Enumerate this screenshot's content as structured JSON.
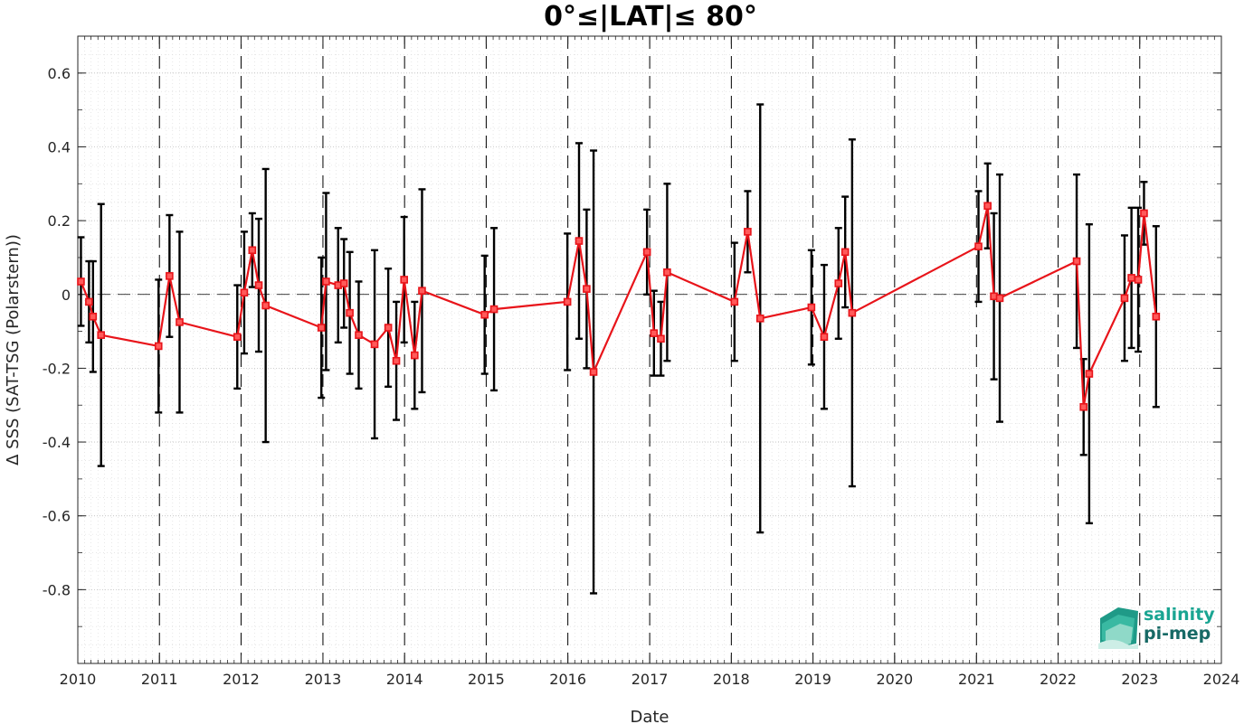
{
  "chart_data": {
    "type": "line",
    "title": "0°≤|LAT|≤ 80°",
    "xlabel": "Date",
    "ylabel": "Δ SSS (SAT-TSG (Polarstern))",
    "xlim": [
      "2010-01-01",
      "2024-01-01"
    ],
    "ylim": [
      -1.0,
      0.7
    ],
    "x_ticks": [
      "2010",
      "2011",
      "2012",
      "2013",
      "2014",
      "2015",
      "2016",
      "2017",
      "2018",
      "2019",
      "2020",
      "2021",
      "2022",
      "2023",
      "2024"
    ],
    "y_ticks": [
      -0.8,
      -0.6,
      -0.4,
      -0.2,
      0,
      0.2,
      0.4,
      0.6
    ],
    "y_tick_labels": [
      "-0.8",
      "-0.6",
      "-0.4",
      "-0.2",
      "0",
      "0.2",
      "0.4",
      "0.6"
    ],
    "grid": true,
    "year_lines": "dashed vertical lines at each year",
    "zero_line": "dashed horizontal line at 0",
    "series": [
      {
        "color": "#e8141a",
        "marker": "square",
        "error_bar_color": "#000000",
        "points": [
          {
            "date": "2010-01-15",
            "y": 0.035,
            "err": 0.12
          },
          {
            "date": "2010-02-20",
            "y": -0.02,
            "err": 0.11
          },
          {
            "date": "2010-03-10",
            "y": -0.06,
            "err": 0.15
          },
          {
            "date": "2010-04-15",
            "y": -0.11,
            "err": 0.355
          },
          {
            "date": "2010-12-28",
            "y": -0.14,
            "err": 0.18
          },
          {
            "date": "2011-02-15",
            "y": 0.05,
            "err": 0.165
          },
          {
            "date": "2011-04-01",
            "y": -0.075,
            "err": 0.245
          },
          {
            "date": "2011-12-15",
            "y": -0.115,
            "err": 0.14
          },
          {
            "date": "2012-01-15",
            "y": 0.005,
            "err": 0.165
          },
          {
            "date": "2012-02-20",
            "y": 0.12,
            "err": 0.1
          },
          {
            "date": "2012-03-20",
            "y": 0.025,
            "err": 0.18
          },
          {
            "date": "2012-04-20",
            "y": -0.03,
            "err": 0.37
          },
          {
            "date": "2012-12-25",
            "y": -0.09,
            "err": 0.19
          },
          {
            "date": "2013-01-15",
            "y": 0.035,
            "err": 0.24
          },
          {
            "date": "2013-03-10",
            "y": 0.025,
            "err": 0.155
          },
          {
            "date": "2013-04-05",
            "y": 0.03,
            "err": 0.12
          },
          {
            "date": "2013-05-01",
            "y": -0.05,
            "err": 0.165
          },
          {
            "date": "2013-06-10",
            "y": -0.11,
            "err": 0.145
          },
          {
            "date": "2013-08-20",
            "y": -0.135,
            "err": 0.255
          },
          {
            "date": "2013-10-20",
            "y": -0.09,
            "err": 0.16
          },
          {
            "date": "2013-11-25",
            "y": -0.18,
            "err": 0.16
          },
          {
            "date": "2013-12-30",
            "y": 0.04,
            "err": 0.17
          },
          {
            "date": "2014-02-15",
            "y": -0.165,
            "err": 0.145
          },
          {
            "date": "2014-03-20",
            "y": 0.01,
            "err": 0.275
          },
          {
            "date": "2014-12-25",
            "y": -0.055,
            "err": 0.16
          },
          {
            "date": "2015-02-05",
            "y": -0.04,
            "err": 0.22
          },
          {
            "date": "2015-12-30",
            "y": -0.02,
            "err": 0.185
          },
          {
            "date": "2016-02-20",
            "y": 0.145,
            "err": 0.265
          },
          {
            "date": "2016-03-25",
            "y": 0.015,
            "err": 0.215
          },
          {
            "date": "2016-04-25",
            "y": -0.21,
            "err": 0.6
          },
          {
            "date": "2016-12-20",
            "y": 0.115,
            "err": 0.115
          },
          {
            "date": "2017-01-20",
            "y": -0.105,
            "err": 0.115
          },
          {
            "date": "2017-02-20",
            "y": -0.12,
            "err": 0.1
          },
          {
            "date": "2017-03-20",
            "y": 0.06,
            "err": 0.24
          },
          {
            "date": "2018-01-15",
            "y": -0.02,
            "err": 0.16
          },
          {
            "date": "2018-03-15",
            "y": 0.17,
            "err": 0.11
          },
          {
            "date": "2018-05-10",
            "y": -0.065,
            "err": 0.58
          },
          {
            "date": "2018-12-25",
            "y": -0.035,
            "err": 0.155
          },
          {
            "date": "2019-02-20",
            "y": -0.115,
            "err": 0.195
          },
          {
            "date": "2019-04-25",
            "y": 0.03,
            "err": 0.15
          },
          {
            "date": "2019-05-25",
            "y": 0.115,
            "err": 0.15
          },
          {
            "date": "2019-06-25",
            "y": -0.05,
            "err": 0.47
          },
          {
            "date": "2021-01-10",
            "y": 0.13,
            "err": 0.15
          },
          {
            "date": "2021-02-20",
            "y": 0.24,
            "err": 0.115
          },
          {
            "date": "2021-03-20",
            "y": -0.005,
            "err": 0.225
          },
          {
            "date": "2021-04-15",
            "y": -0.01,
            "err": 0.335
          },
          {
            "date": "2022-03-25",
            "y": 0.09,
            "err": 0.235
          },
          {
            "date": "2022-04-25",
            "y": -0.305,
            "err": 0.13
          },
          {
            "date": "2022-05-20",
            "y": -0.215,
            "err": 0.405
          },
          {
            "date": "2022-10-25",
            "y": -0.01,
            "err": 0.17
          },
          {
            "date": "2022-11-25",
            "y": 0.045,
            "err": 0.19
          },
          {
            "date": "2022-12-25",
            "y": 0.04,
            "err": 0.195
          },
          {
            "date": "2023-01-20",
            "y": 0.22,
            "err": 0.085
          },
          {
            "date": "2023-03-15",
            "y": -0.06,
            "err": 0.245
          }
        ]
      }
    ]
  },
  "logo": {
    "line1": "salinity",
    "line2": "pi-mep",
    "color1": "#1aa592",
    "color2": "#176a66"
  }
}
